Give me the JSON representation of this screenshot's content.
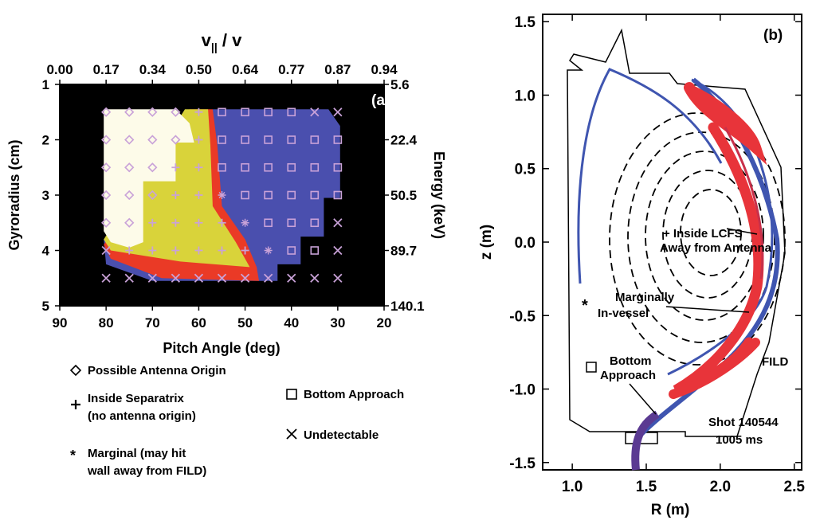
{
  "chart_data": [
    {
      "panel": "(a)",
      "type": "heatmap",
      "xlabel": "Pitch Angle (deg)",
      "x_ticks": [
        "90",
        "80",
        "70",
        "60",
        "50",
        "40",
        "30",
        "20"
      ],
      "xlim": [
        90,
        20
      ],
      "ylabel": "Gyroradius (cm)",
      "y_ticks": [
        "1",
        "2",
        "3",
        "4",
        "5"
      ],
      "ylim": [
        1,
        5
      ],
      "top_label": "v|| / v",
      "top_ticks": [
        "0.00",
        "0.17",
        "0.34",
        "0.50",
        "0.64",
        "0.77",
        "0.87",
        "0.94"
      ],
      "right_label": "Energy (keV)",
      "right_ticks": [
        "5.6",
        "22.4",
        "50.5",
        "89.7",
        "140.1"
      ],
      "region_colors": {
        "background": "#000000",
        "possible_antenna": "#fdfbe9",
        "inside_separatrix": "#d9d33a",
        "marginal": "#ea3a26",
        "bottom_approach": "#4a4fae"
      },
      "marker_color": "#c9a2d8",
      "markers": [
        {
          "pitch": 80,
          "rho": 1.5,
          "m": "diamond"
        },
        {
          "pitch": 75,
          "rho": 1.5,
          "m": "diamond"
        },
        {
          "pitch": 70,
          "rho": 1.5,
          "m": "diamond"
        },
        {
          "pitch": 65,
          "rho": 1.5,
          "m": "diamond"
        },
        {
          "pitch": 60,
          "rho": 1.5,
          "m": "plus"
        },
        {
          "pitch": 55,
          "rho": 1.5,
          "m": "square"
        },
        {
          "pitch": 50,
          "rho": 1.5,
          "m": "square"
        },
        {
          "pitch": 45,
          "rho": 1.5,
          "m": "square"
        },
        {
          "pitch": 40,
          "rho": 1.5,
          "m": "square"
        },
        {
          "pitch": 35,
          "rho": 1.5,
          "m": "x"
        },
        {
          "pitch": 30,
          "rho": 1.5,
          "m": "x"
        },
        {
          "pitch": 80,
          "rho": 2,
          "m": "diamond"
        },
        {
          "pitch": 75,
          "rho": 2,
          "m": "diamond"
        },
        {
          "pitch": 70,
          "rho": 2,
          "m": "diamond"
        },
        {
          "pitch": 65,
          "rho": 2,
          "m": "diamond"
        },
        {
          "pitch": 60,
          "rho": 2,
          "m": "plus"
        },
        {
          "pitch": 55,
          "rho": 2,
          "m": "square"
        },
        {
          "pitch": 50,
          "rho": 2,
          "m": "square"
        },
        {
          "pitch": 45,
          "rho": 2,
          "m": "square"
        },
        {
          "pitch": 40,
          "rho": 2,
          "m": "square"
        },
        {
          "pitch": 35,
          "rho": 2,
          "m": "square"
        },
        {
          "pitch": 30,
          "rho": 2,
          "m": "square"
        },
        {
          "pitch": 80,
          "rho": 2.5,
          "m": "diamond"
        },
        {
          "pitch": 75,
          "rho": 2.5,
          "m": "diamond"
        },
        {
          "pitch": 70,
          "rho": 2.5,
          "m": "diamond"
        },
        {
          "pitch": 65,
          "rho": 2.5,
          "m": "plus"
        },
        {
          "pitch": 60,
          "rho": 2.5,
          "m": "plus"
        },
        {
          "pitch": 55,
          "rho": 2.5,
          "m": "square"
        },
        {
          "pitch": 50,
          "rho": 2.5,
          "m": "square"
        },
        {
          "pitch": 45,
          "rho": 2.5,
          "m": "square"
        },
        {
          "pitch": 40,
          "rho": 2.5,
          "m": "square"
        },
        {
          "pitch": 35,
          "rho": 2.5,
          "m": "square"
        },
        {
          "pitch": 30,
          "rho": 2.5,
          "m": "square"
        },
        {
          "pitch": 80,
          "rho": 3,
          "m": "diamond"
        },
        {
          "pitch": 75,
          "rho": 3,
          "m": "diamond"
        },
        {
          "pitch": 70,
          "rho": 3,
          "m": "diamond"
        },
        {
          "pitch": 65,
          "rho": 3,
          "m": "plus"
        },
        {
          "pitch": 60,
          "rho": 3,
          "m": "plus"
        },
        {
          "pitch": 55,
          "rho": 3,
          "m": "star"
        },
        {
          "pitch": 50,
          "rho": 3,
          "m": "square"
        },
        {
          "pitch": 45,
          "rho": 3,
          "m": "square"
        },
        {
          "pitch": 40,
          "rho": 3,
          "m": "square"
        },
        {
          "pitch": 35,
          "rho": 3,
          "m": "square"
        },
        {
          "pitch": 30,
          "rho": 3,
          "m": "square"
        },
        {
          "pitch": 80,
          "rho": 3.5,
          "m": "diamond"
        },
        {
          "pitch": 75,
          "rho": 3.5,
          "m": "diamond"
        },
        {
          "pitch": 70,
          "rho": 3.5,
          "m": "plus"
        },
        {
          "pitch": 65,
          "rho": 3.5,
          "m": "plus"
        },
        {
          "pitch": 60,
          "rho": 3.5,
          "m": "plus"
        },
        {
          "pitch": 55,
          "rho": 3.5,
          "m": "plus"
        },
        {
          "pitch": 50,
          "rho": 3.5,
          "m": "star"
        },
        {
          "pitch": 45,
          "rho": 3.5,
          "m": "square"
        },
        {
          "pitch": 40,
          "rho": 3.5,
          "m": "square"
        },
        {
          "pitch": 35,
          "rho": 3.5,
          "m": "square"
        },
        {
          "pitch": 30,
          "rho": 3.5,
          "m": "x"
        },
        {
          "pitch": 80,
          "rho": 4,
          "m": "x"
        },
        {
          "pitch": 75,
          "rho": 4,
          "m": "plus"
        },
        {
          "pitch": 70,
          "rho": 4,
          "m": "plus"
        },
        {
          "pitch": 65,
          "rho": 4,
          "m": "plus"
        },
        {
          "pitch": 60,
          "rho": 4,
          "m": "plus"
        },
        {
          "pitch": 55,
          "rho": 4,
          "m": "plus"
        },
        {
          "pitch": 50,
          "rho": 4,
          "m": "plus"
        },
        {
          "pitch": 45,
          "rho": 4,
          "m": "star"
        },
        {
          "pitch": 40,
          "rho": 4,
          "m": "square"
        },
        {
          "pitch": 35,
          "rho": 4,
          "m": "square"
        },
        {
          "pitch": 30,
          "rho": 4,
          "m": "x"
        },
        {
          "pitch": 80,
          "rho": 4.5,
          "m": "x"
        },
        {
          "pitch": 75,
          "rho": 4.5,
          "m": "x"
        },
        {
          "pitch": 70,
          "rho": 4.5,
          "m": "x"
        },
        {
          "pitch": 65,
          "rho": 4.5,
          "m": "x"
        },
        {
          "pitch": 60,
          "rho": 4.5,
          "m": "x"
        },
        {
          "pitch": 55,
          "rho": 4.5,
          "m": "x"
        },
        {
          "pitch": 50,
          "rho": 4.5,
          "m": "x"
        },
        {
          "pitch": 45,
          "rho": 4.5,
          "m": "x"
        },
        {
          "pitch": 40,
          "rho": 4.5,
          "m": "x"
        },
        {
          "pitch": 35,
          "rho": 4.5,
          "m": "x"
        },
        {
          "pitch": 30,
          "rho": 4.5,
          "m": "x"
        }
      ]
    },
    {
      "panel": "(b)",
      "type": "line",
      "xlabel": "R (m)",
      "x_ticks": [
        "1.0",
        "1.5",
        "2.0",
        "2.5"
      ],
      "xlim": [
        0.8,
        2.55
      ],
      "ylabel": "z (m)",
      "y_ticks": [
        "1.5",
        "1.0",
        "0.5",
        "0.0",
        "-0.5",
        "-1.0",
        "-1.5"
      ],
      "ylim": [
        -1.55,
        1.55
      ],
      "orbit_colors": {
        "blue": "#3f55b0",
        "red": "#e8343a",
        "purple": "#5b3a92"
      },
      "annotations": {
        "inside_lcfs": [
          "+ Inside LCFS",
          "Away from Antenna"
        ],
        "marginal": [
          "Marginally",
          "In-vessel"
        ],
        "marginal_marker": "*",
        "bottom": [
          "Bottom",
          "Approach"
        ],
        "fild": "FILD",
        "shot": [
          "Shot 140544",
          "1005 ms"
        ]
      }
    }
  ],
  "legend": {
    "diamond": "Possible Antenna Origin",
    "plus": [
      "Inside Separatrix",
      "(no antenna origin)"
    ],
    "star": [
      "Marginal (may hit",
      "wall away from FILD)"
    ],
    "square": "Bottom Approach",
    "x": "Undetectable",
    "star_symbol": "*"
  }
}
